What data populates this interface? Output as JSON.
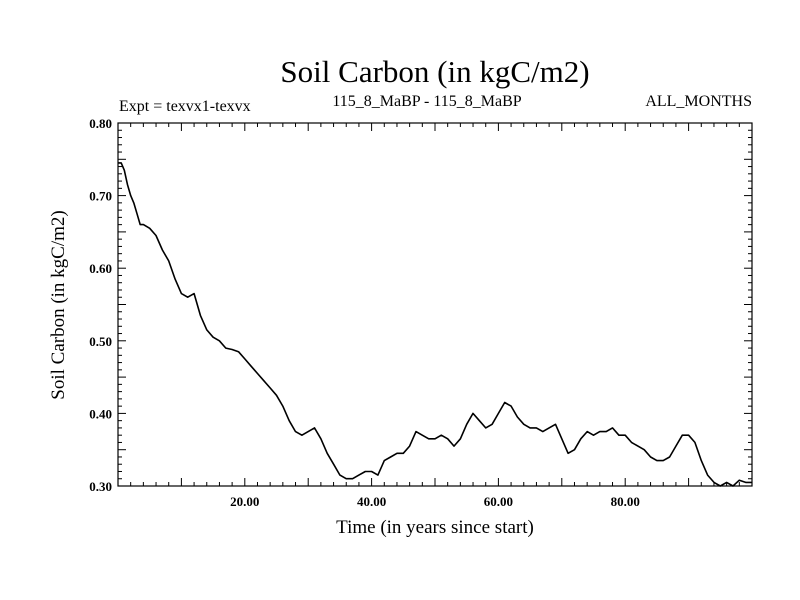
{
  "chart_data": {
    "type": "line",
    "title": "Soil Carbon (in kgC/m2)",
    "subtitle_left": "Expt = texvx1-texvx",
    "subtitle_center": "115_8_MaBP - 115_8_MaBP",
    "subtitle_right": "ALL_MONTHS",
    "xlabel": "Time (in years since start)",
    "ylabel": "Soil Carbon (in kgC/m2)",
    "xlim": [
      0,
      100
    ],
    "ylim": [
      0.3,
      0.8
    ],
    "xticks": [
      20,
      40,
      60,
      80
    ],
    "xtick_labels": [
      "20.00",
      "40.00",
      "60.00",
      "80.00"
    ],
    "yticks": [
      0.3,
      0.4,
      0.5,
      0.6,
      0.7,
      0.8
    ],
    "ytick_labels": [
      "0.30",
      "0.40",
      "0.50",
      "0.60",
      "0.70",
      "0.80"
    ],
    "grid": false,
    "series": [
      {
        "name": "Soil Carbon",
        "color": "#000000",
        "x": [
          0,
          0.5,
          1,
          1.5,
          2,
          2.5,
          3,
          3.5,
          4,
          5,
          6,
          7,
          8,
          9,
          10,
          11,
          12,
          13,
          14,
          15,
          16,
          17,
          18,
          19,
          20,
          21,
          22,
          23,
          24,
          25,
          26,
          27,
          28,
          29,
          30,
          31,
          32,
          33,
          34,
          35,
          36,
          37,
          38,
          39,
          40,
          41,
          42,
          43,
          44,
          45,
          46,
          47,
          48,
          49,
          50,
          51,
          52,
          53,
          54,
          55,
          56,
          57,
          58,
          59,
          60,
          61,
          62,
          63,
          64,
          65,
          66,
          67,
          68,
          69,
          70,
          71,
          72,
          73,
          74,
          75,
          76,
          77,
          78,
          79,
          80,
          81,
          82,
          83,
          84,
          85,
          86,
          87,
          88,
          89,
          90,
          91,
          92,
          93,
          94,
          95,
          96,
          97,
          98,
          99,
          100
        ],
        "values": [
          0.745,
          0.745,
          0.735,
          0.715,
          0.7,
          0.69,
          0.675,
          0.66,
          0.66,
          0.655,
          0.645,
          0.625,
          0.61,
          0.585,
          0.565,
          0.56,
          0.565,
          0.535,
          0.515,
          0.505,
          0.5,
          0.49,
          0.488,
          0.485,
          0.475,
          0.465,
          0.455,
          0.445,
          0.435,
          0.425,
          0.41,
          0.39,
          0.375,
          0.37,
          0.375,
          0.38,
          0.365,
          0.345,
          0.33,
          0.315,
          0.31,
          0.31,
          0.315,
          0.32,
          0.32,
          0.315,
          0.335,
          0.34,
          0.345,
          0.345,
          0.355,
          0.375,
          0.37,
          0.365,
          0.365,
          0.37,
          0.365,
          0.355,
          0.365,
          0.385,
          0.4,
          0.39,
          0.38,
          0.385,
          0.4,
          0.415,
          0.41,
          0.395,
          0.385,
          0.38,
          0.38,
          0.375,
          0.38,
          0.385,
          0.365,
          0.345,
          0.35,
          0.365,
          0.375,
          0.37,
          0.375,
          0.375,
          0.38,
          0.37,
          0.37,
          0.36,
          0.355,
          0.35,
          0.34,
          0.335,
          0.335,
          0.34,
          0.355,
          0.37,
          0.37,
          0.36,
          0.335,
          0.315,
          0.305,
          0.3,
          0.305,
          0.3,
          0.308,
          0.305,
          0.305
        ]
      }
    ]
  }
}
